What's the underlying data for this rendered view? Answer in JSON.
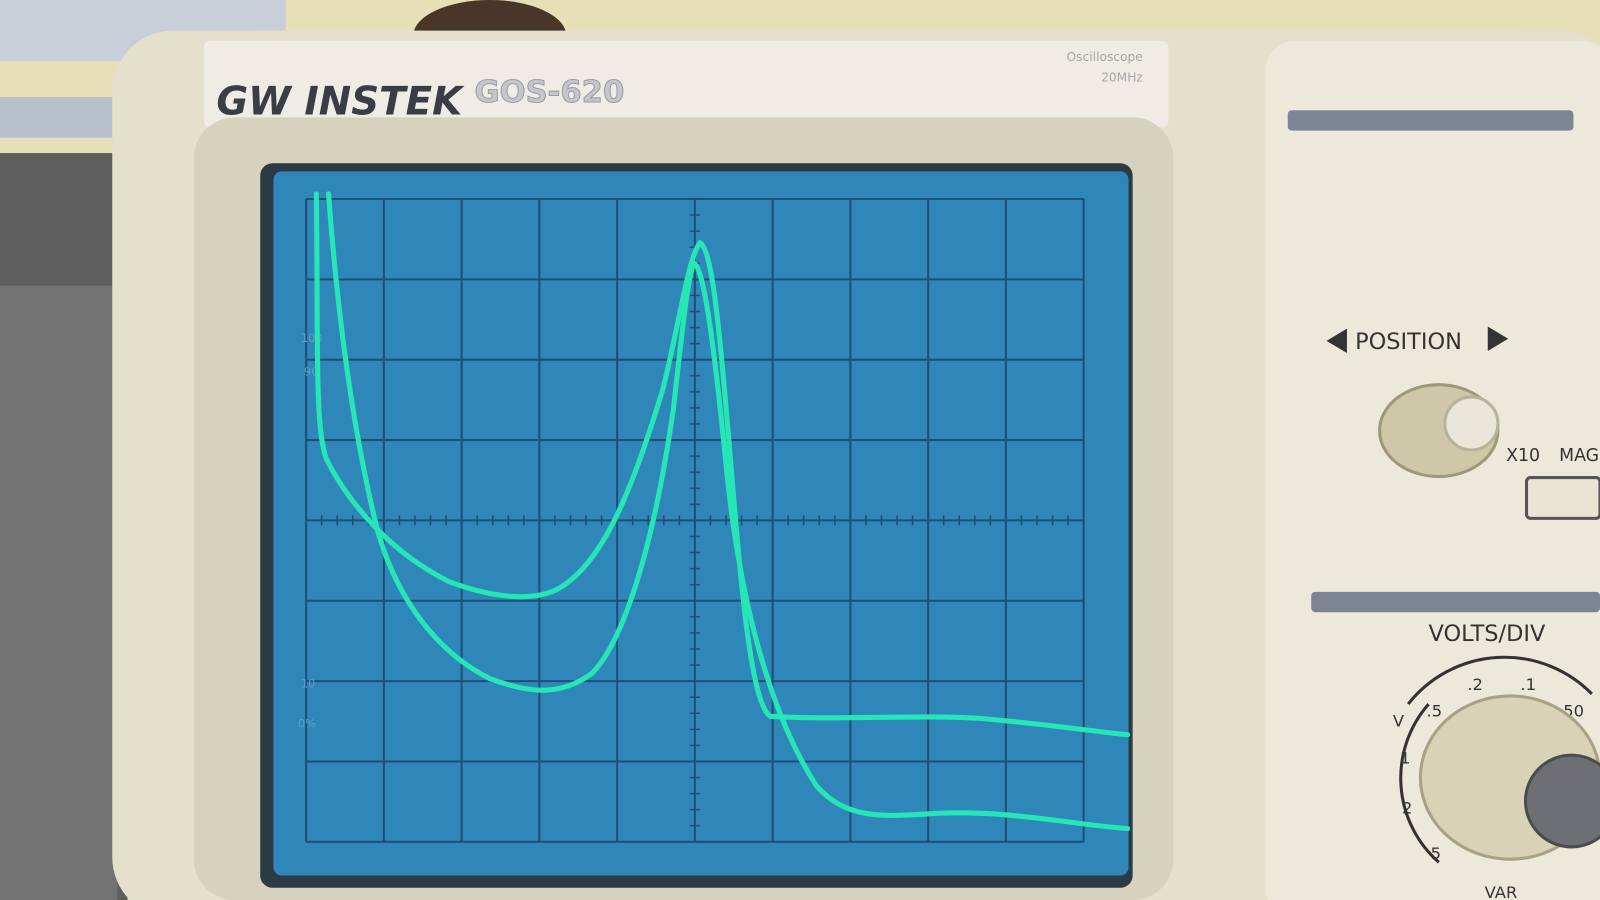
{
  "brand": "GW INSTEK",
  "model": "GOS-620",
  "subtitle": [
    "Oscilloscope",
    "20MHz"
  ],
  "screen_labels": [
    "100",
    "90",
    "10",
    "0%"
  ],
  "controls": {
    "position": "POSITION",
    "x10": "X10",
    "mag": "MAG",
    "volts_div": "VOLTS/DIV",
    "dial_labels": [
      "V",
      ".5",
      ".2",
      ".1",
      "50",
      "1",
      "2",
      "5"
    ],
    "var": "VAR"
  }
}
